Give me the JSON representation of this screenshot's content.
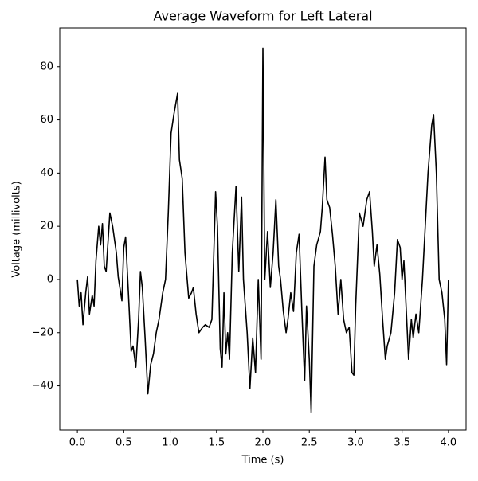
{
  "chart_data": {
    "type": "line",
    "title": "Average Waveform for Left Lateral",
    "x_label": "Time (s)",
    "y_label": "Voltage (millivolts)",
    "xlim": [
      -0.19,
      4.19
    ],
    "ylim": [
      -56.6,
      94.6
    ],
    "xticks": [
      {
        "value": 0,
        "label": "0.0"
      },
      {
        "value": 0.5,
        "label": "0.5"
      },
      {
        "value": 1,
        "label": "1.0"
      },
      {
        "value": 1.5,
        "label": "1.5"
      },
      {
        "value": 2,
        "label": "2.0"
      },
      {
        "value": 2.5,
        "label": "2.5"
      },
      {
        "value": 3,
        "label": "3.0"
      },
      {
        "value": 3.5,
        "label": "3.5"
      },
      {
        "value": 4,
        "label": "4.0"
      }
    ],
    "yticks": [
      {
        "value": -40,
        "label": "−40"
      },
      {
        "value": -20,
        "label": "−20"
      },
      0,
      20,
      40,
      60,
      80
    ],
    "color": "#000000",
    "x": [
      0,
      0.02,
      0.04,
      0.06,
      0.09,
      0.11,
      0.13,
      0.16,
      0.18,
      0.2,
      0.23,
      0.25,
      0.27,
      0.29,
      0.31,
      0.35,
      0.38,
      0.42,
      0.44,
      0.48,
      0.5,
      0.52,
      0.55,
      0.58,
      0.6,
      0.63,
      0.66,
      0.68,
      0.7,
      0.73,
      0.76,
      0.79,
      0.82,
      0.85,
      0.88,
      0.92,
      0.95,
      0.98,
      1.01,
      1.04,
      1.08,
      1.1,
      1.13,
      1.16,
      1.2,
      1.23,
      1.25,
      1.28,
      1.31,
      1.35,
      1.38,
      1.42,
      1.45,
      1.49,
      1.51,
      1.54,
      1.56,
      1.58,
      1.6,
      1.62,
      1.64,
      1.67,
      1.71,
      1.74,
      1.77,
      1.79,
      1.83,
      1.86,
      1.89,
      1.92,
      1.95,
      1.98,
      2.0,
      2.02,
      2.05,
      2.08,
      2.11,
      2.14,
      2.17,
      2.19,
      2.22,
      2.25,
      2.27,
      2.3,
      2.33,
      2.36,
      2.39,
      2.42,
      2.45,
      2.47,
      2.5,
      2.52,
      2.55,
      2.58,
      2.62,
      2.64,
      2.67,
      2.69,
      2.72,
      2.75,
      2.78,
      2.81,
      2.84,
      2.87,
      2.9,
      2.93,
      2.96,
      2.98,
      3.0,
      3.04,
      3.08,
      3.12,
      3.15,
      3.18,
      3.2,
      3.23,
      3.26,
      3.29,
      3.32,
      3.34,
      3.38,
      3.42,
      3.45,
      3.48,
      3.5,
      3.52,
      3.55,
      3.57,
      3.6,
      3.62,
      3.65,
      3.68,
      3.72,
      3.75,
      3.78,
      3.82,
      3.84,
      3.87,
      3.9,
      3.93,
      3.96,
      3.98,
      4.0
    ],
    "values": [
      0,
      -10,
      -5,
      -17,
      -5,
      1,
      -13,
      -6,
      -10,
      7,
      20,
      13,
      21,
      5,
      3,
      25,
      20,
      10,
      1,
      -8,
      12,
      16,
      -5,
      -27,
      -25,
      -33,
      -15,
      3,
      -3,
      -22,
      -43,
      -32,
      -28,
      -20,
      -15,
      -5,
      0,
      25,
      55,
      62,
      70,
      45,
      38,
      10,
      -7,
      -5,
      -3,
      -13,
      -20,
      -18,
      -17,
      -18,
      -15,
      33,
      20,
      -26,
      -33,
      -5,
      -28,
      -20,
      -30,
      10,
      35,
      3,
      31,
      0,
      -20,
      -41,
      -22,
      -35,
      0,
      -30,
      87,
      0,
      18,
      -3,
      10,
      30,
      5,
      0,
      -12,
      -20,
      -15,
      -5,
      -12,
      10,
      17,
      -12,
      -38,
      -10,
      -30,
      -50,
      5,
      13,
      18,
      27,
      46,
      30,
      27,
      17,
      5,
      -13,
      0,
      -15,
      -20,
      -18,
      -35,
      -36,
      -10,
      25,
      20,
      30,
      33,
      18,
      5,
      13,
      2,
      -15,
      -30,
      -25,
      -20,
      -5,
      15,
      12,
      0,
      7,
      -15,
      -30,
      -15,
      -22,
      -13,
      -20,
      0,
      20,
      40,
      58,
      62,
      40,
      0,
      -5,
      -15,
      -32,
      0
    ]
  }
}
